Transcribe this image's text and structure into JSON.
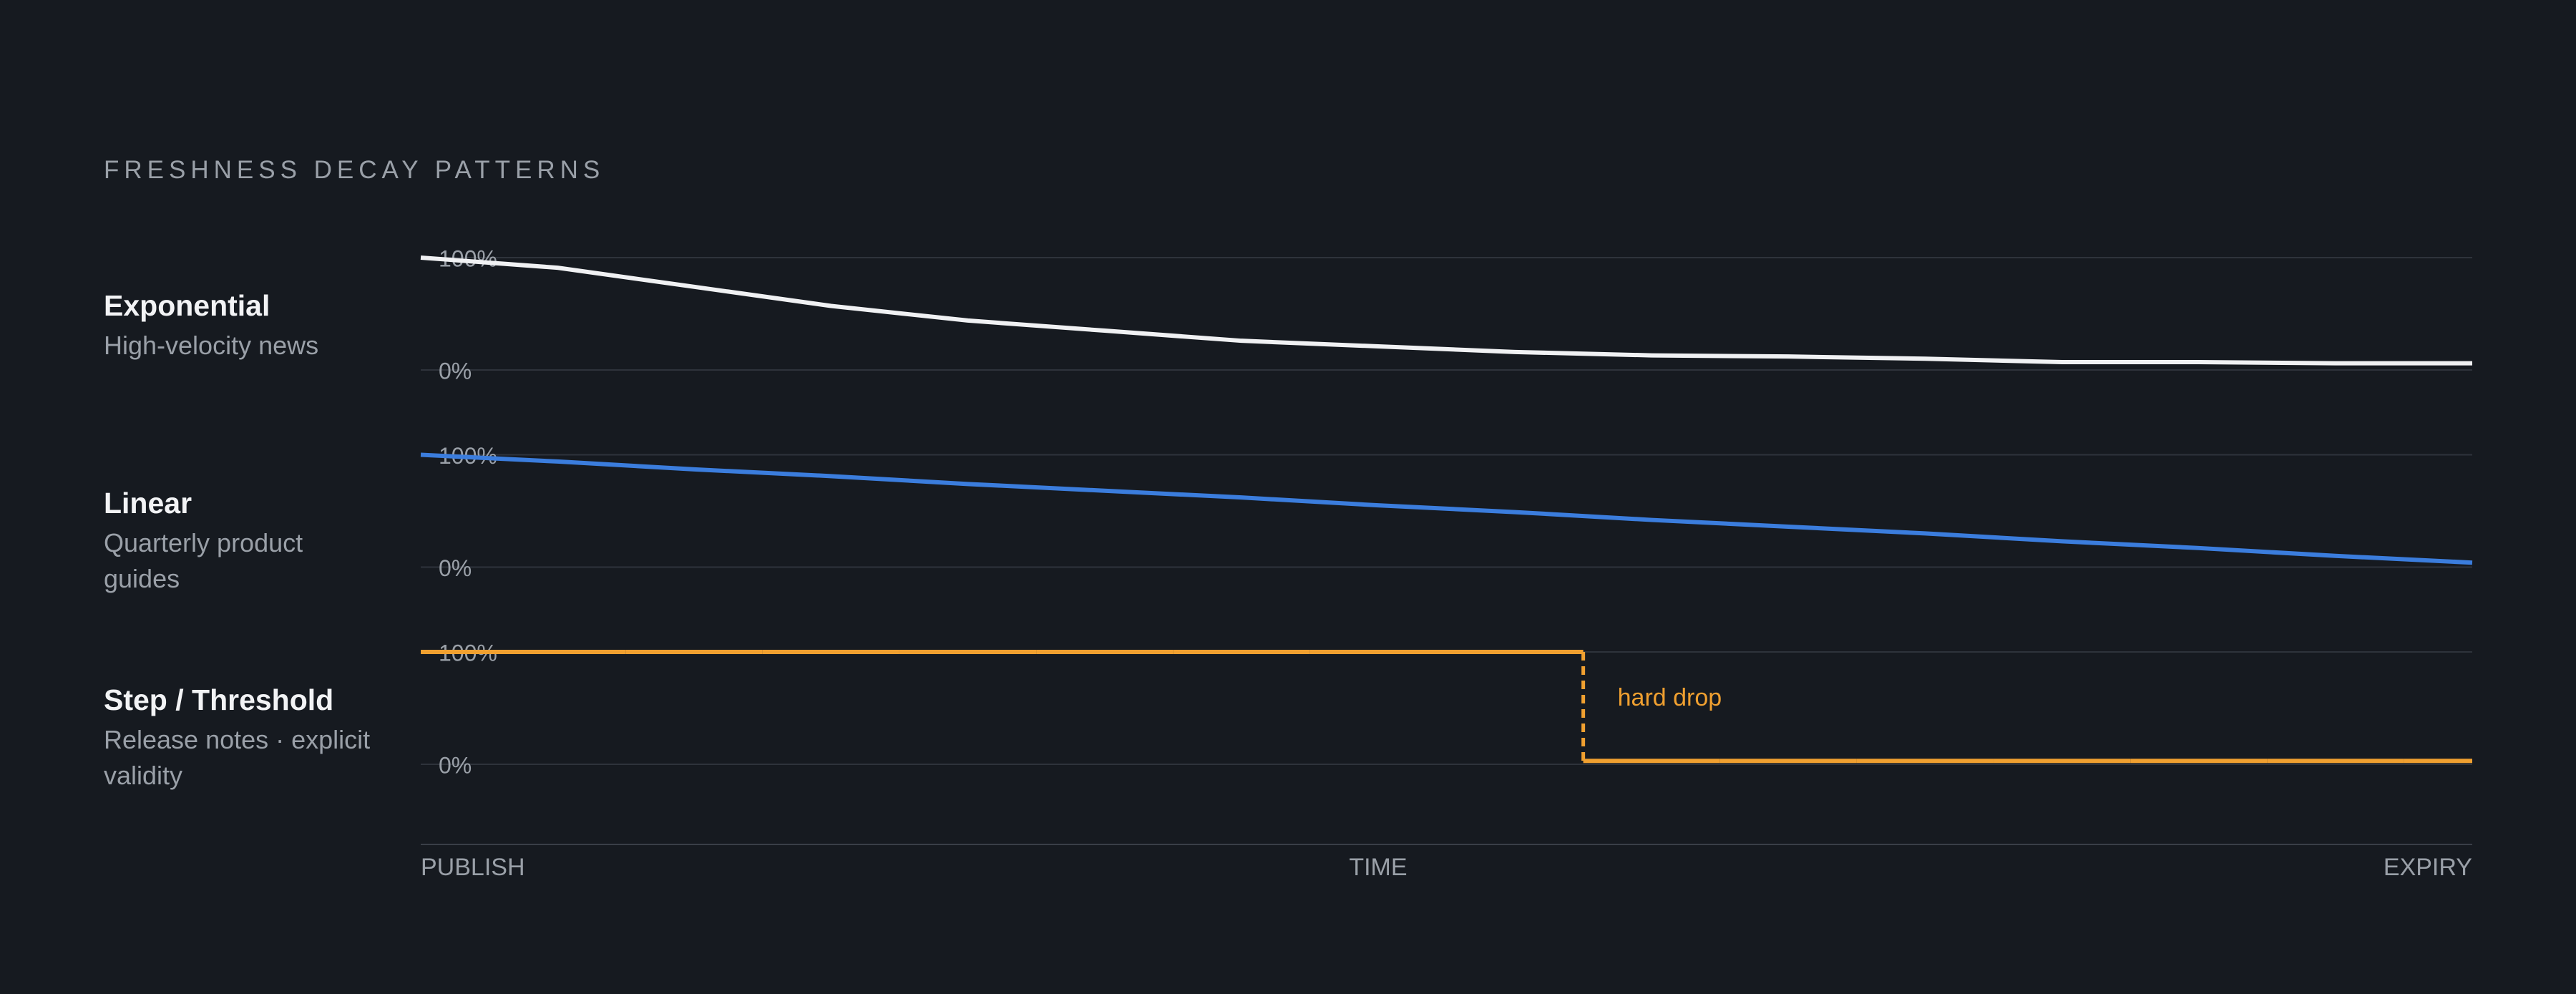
{
  "title": "FRESHNESS DECAY PATTERNS",
  "categories": [
    "PUBLISH",
    null,
    null,
    null,
    null,
    null,
    null,
    "TIME",
    null,
    null,
    null,
    null,
    null,
    null,
    null,
    "EXPIRY"
  ],
  "chart_data": [
    {
      "type": "line",
      "title": "Exponential",
      "subtitle": "High-velocity news",
      "color": "#f0f1f3",
      "values": [
        100,
        91,
        74,
        57,
        44,
        35,
        26,
        21,
        16,
        13,
        12,
        10,
        7,
        7,
        6,
        6
      ],
      "ylim": [
        0,
        100
      ],
      "yticks": [
        {
          "value": 0,
          "label": "0%"
        },
        {
          "value": 100,
          "label": "100%"
        }
      ]
    },
    {
      "type": "line",
      "title": "Linear",
      "subtitle": "Quarterly product guides",
      "color": "#3b7ddd",
      "values": [
        100,
        94,
        87,
        81,
        74,
        68,
        62,
        55,
        49,
        42,
        36,
        30,
        23,
        17,
        10,
        4
      ],
      "ylim": [
        0,
        100
      ],
      "yticks": [
        {
          "value": 0,
          "label": "0%"
        },
        {
          "value": 100,
          "label": "100%"
        }
      ]
    },
    {
      "type": "step",
      "title": "Step / Threshold",
      "subtitle": "Release notes · explicit validity",
      "color": "#f0a030",
      "values": [
        100,
        100,
        100,
        100,
        100,
        100,
        100,
        100,
        100,
        3,
        3,
        3,
        3,
        3,
        3,
        3
      ],
      "annotation": "hard drop",
      "ylim": [
        0,
        100
      ],
      "yticks": [
        {
          "value": 0,
          "label": "0%"
        },
        {
          "value": 100,
          "label": "100%"
        }
      ]
    }
  ]
}
